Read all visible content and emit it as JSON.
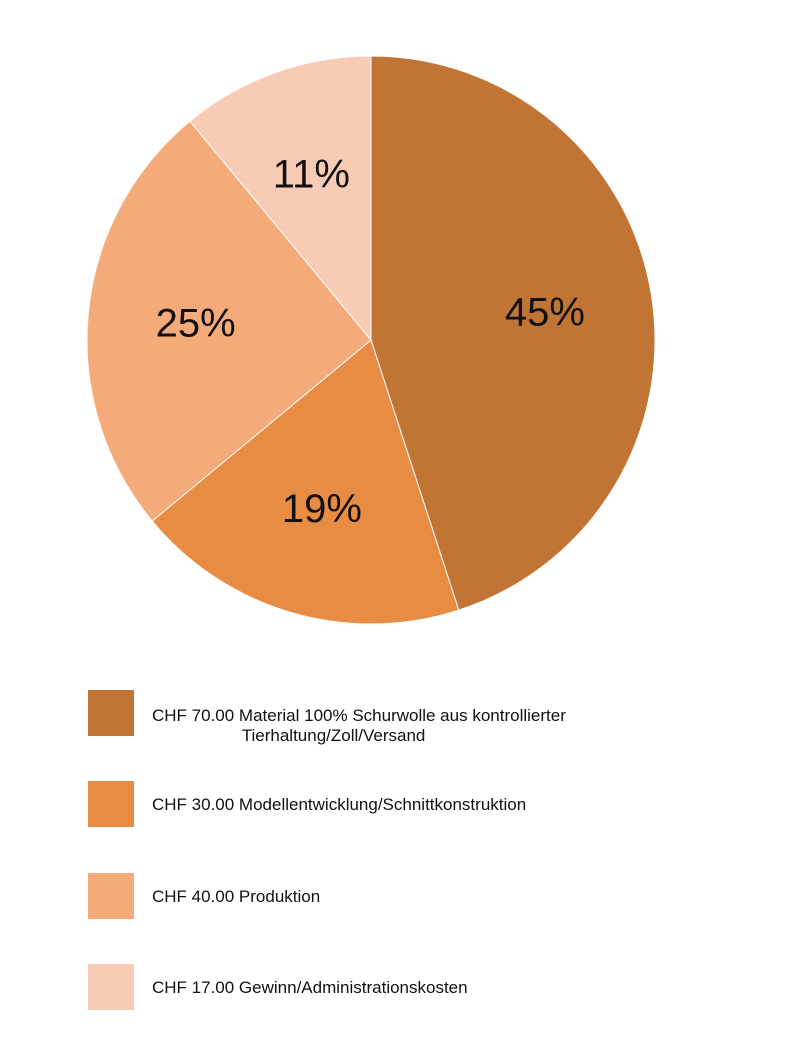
{
  "chart_data": {
    "type": "pie",
    "slices": [
      {
        "label": "45%",
        "value": 45,
        "color": "#c07535"
      },
      {
        "label": "19%",
        "value": 19,
        "color": "#e88c43"
      },
      {
        "label": "25%",
        "value": 25,
        "color": "#f5aa7a"
      },
      {
        "label": "11%",
        "value": 11,
        "color": "#f8cbb4"
      }
    ],
    "legend": [
      {
        "text": "CHF 70.00 Material 100% Schurwolle aus kontrollierter\n                   Tierhaltung/Zoll/Versand",
        "color": "#c07535"
      },
      {
        "text": "CHF 30.00 Modellentwicklung/Schnittkonstruktion",
        "color": "#e88c43"
      },
      {
        "text": "CHF 40.00 Produktion",
        "color": "#f5aa7a"
      },
      {
        "text": "CHF 17.00 Gewinn/Administrationskosten",
        "color": "#f8cbb4"
      }
    ]
  }
}
